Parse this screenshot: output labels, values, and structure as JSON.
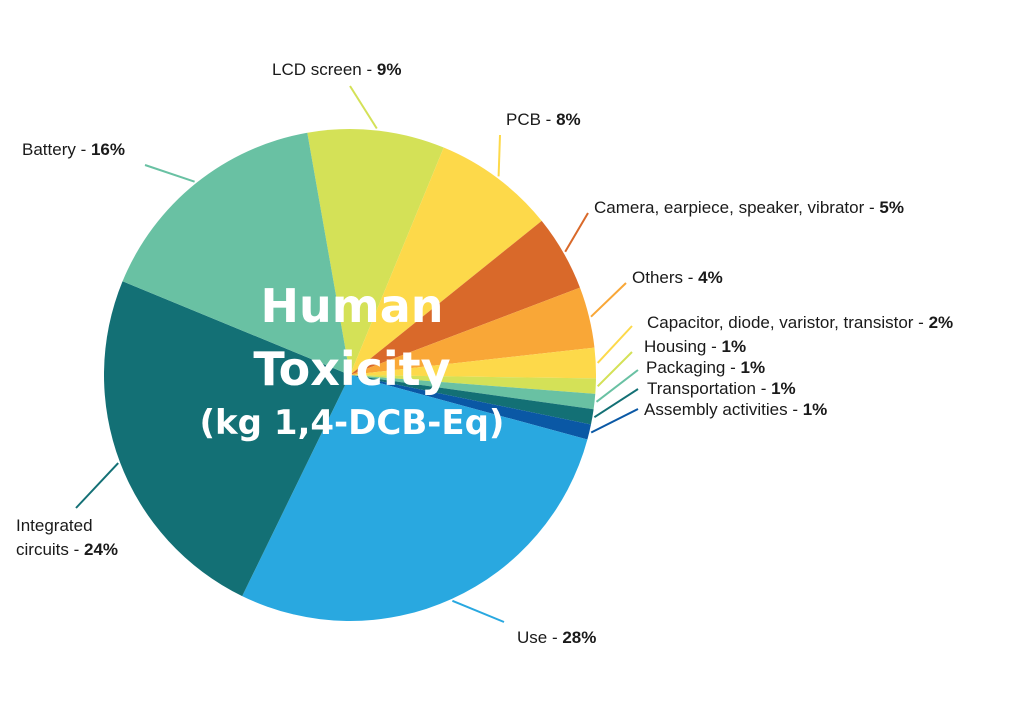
{
  "chart_data": {
    "type": "pie",
    "title_lines": [
      "Human",
      "Toxicity",
      "(kg 1,4-DCB-Eq)"
    ],
    "slices": [
      {
        "label": "LCD screen",
        "value": 9,
        "pct_text": "9%",
        "color": "#d4e157"
      },
      {
        "label": "PCB",
        "value": 8,
        "pct_text": "8%",
        "color": "#fdd94a"
      },
      {
        "label": "Camera, earpiece, speaker, vibrator",
        "value": 5,
        "pct_text": "5%",
        "color": "#d9692a"
      },
      {
        "label": "Others",
        "value": 4,
        "pct_text": "4%",
        "color": "#f9a737"
      },
      {
        "label": "Capacitor, diode, varistor, transistor",
        "value": 2,
        "pct_text": "2%",
        "color": "#fdd94a"
      },
      {
        "label": "Housing",
        "value": 1,
        "pct_text": "1%",
        "color": "#d4e157"
      },
      {
        "label": "Packaging",
        "value": 1,
        "pct_text": "1%",
        "color": "#69c1a3"
      },
      {
        "label": "Transportation",
        "value": 1,
        "pct_text": "1%",
        "color": "#137075"
      },
      {
        "label": "Assembly activities",
        "value": 1,
        "pct_text": "1%",
        "color": "#0a58a5"
      },
      {
        "label": "Use",
        "value": 28,
        "pct_text": "28%",
        "color": "#29a8e0"
      },
      {
        "label": "Integrated circuits",
        "value": 24,
        "pct_text": "24%",
        "color": "#137075"
      },
      {
        "label": "Battery",
        "value": 16,
        "pct_text": "16%",
        "color": "#69c1a3"
      }
    ]
  }
}
